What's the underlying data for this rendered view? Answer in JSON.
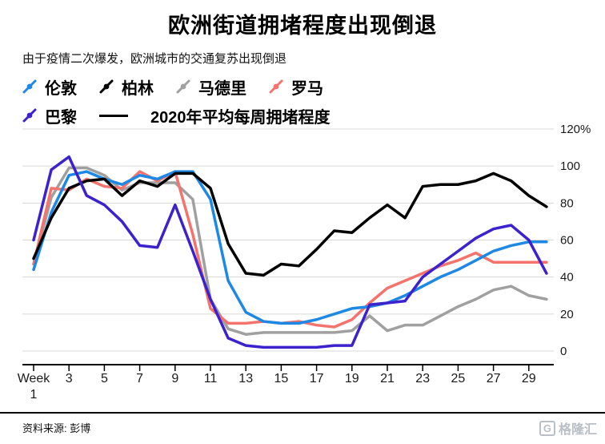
{
  "header": {
    "title": "欧洲街道拥堵程度出现倒退",
    "subtitle": "由于疫情二次爆发，欧洲城市的交通复苏出现倒退"
  },
  "chart_data": {
    "type": "line",
    "x": [
      1,
      2,
      3,
      4,
      5,
      6,
      7,
      8,
      9,
      10,
      11,
      12,
      13,
      14,
      15,
      16,
      17,
      18,
      19,
      20,
      21,
      22,
      23,
      24,
      25,
      26,
      27,
      28,
      29,
      30
    ],
    "x_ticks": [
      1,
      3,
      5,
      7,
      9,
      11,
      13,
      15,
      17,
      19,
      21,
      23,
      25,
      27,
      29
    ],
    "x_first_tick_label": [
      "Week",
      "1"
    ],
    "ylim": [
      0,
      120
    ],
    "y_ticks": [
      0,
      20,
      40,
      60,
      80,
      100,
      120
    ],
    "y_tick_labels": [
      "0",
      "20",
      "40",
      "60",
      "80",
      "100",
      "120%"
    ],
    "grid": "horizontal",
    "legend_position": "top-left",
    "avg_line_label": "2020年平均每周拥堵程度",
    "series": [
      {
        "name": "伦敦",
        "color": "#1e88e5",
        "values": [
          44,
          75,
          95,
          97,
          93,
          90,
          95,
          93,
          97,
          97,
          82,
          38,
          21,
          16,
          15,
          15,
          17,
          20,
          23,
          24,
          26,
          30,
          35,
          40,
          44,
          49,
          54,
          57,
          59,
          59
        ]
      },
      {
        "name": "柏林",
        "color": "#000000",
        "values": [
          50,
          72,
          88,
          92,
          93,
          84,
          92,
          89,
          96,
          96,
          88,
          58,
          42,
          41,
          47,
          46,
          55,
          65,
          64,
          72,
          79,
          72,
          89,
          90,
          90,
          92,
          96,
          92,
          84,
          78
        ]
      },
      {
        "name": "马德里",
        "color": "#a0a0a0",
        "values": [
          47,
          83,
          99,
          99,
          95,
          87,
          91,
          91,
          91,
          82,
          28,
          12,
          9,
          10,
          10,
          10,
          10,
          10,
          11,
          19,
          11,
          14,
          14,
          19,
          24,
          28,
          33,
          35,
          30,
          28
        ]
      },
      {
        "name": "罗马",
        "color": "#f4736c",
        "values": [
          47,
          88,
          87,
          93,
          89,
          88,
          97,
          92,
          97,
          63,
          23,
          15,
          15,
          16,
          15,
          16,
          14,
          13,
          17,
          26,
          34,
          38,
          42,
          46,
          49,
          53,
          48,
          48,
          48,
          48
        ]
      },
      {
        "name": "巴黎",
        "color": "#3b22cc",
        "values": [
          60,
          98,
          105,
          84,
          79,
          70,
          57,
          56,
          79,
          54,
          28,
          7,
          3,
          2,
          2,
          2,
          2,
          3,
          3,
          25,
          26,
          27,
          40,
          47,
          54,
          61,
          66,
          68,
          60,
          42
        ]
      }
    ]
  },
  "footer": {
    "source": "资料来源: 彭博",
    "logo": "格隆汇"
  }
}
